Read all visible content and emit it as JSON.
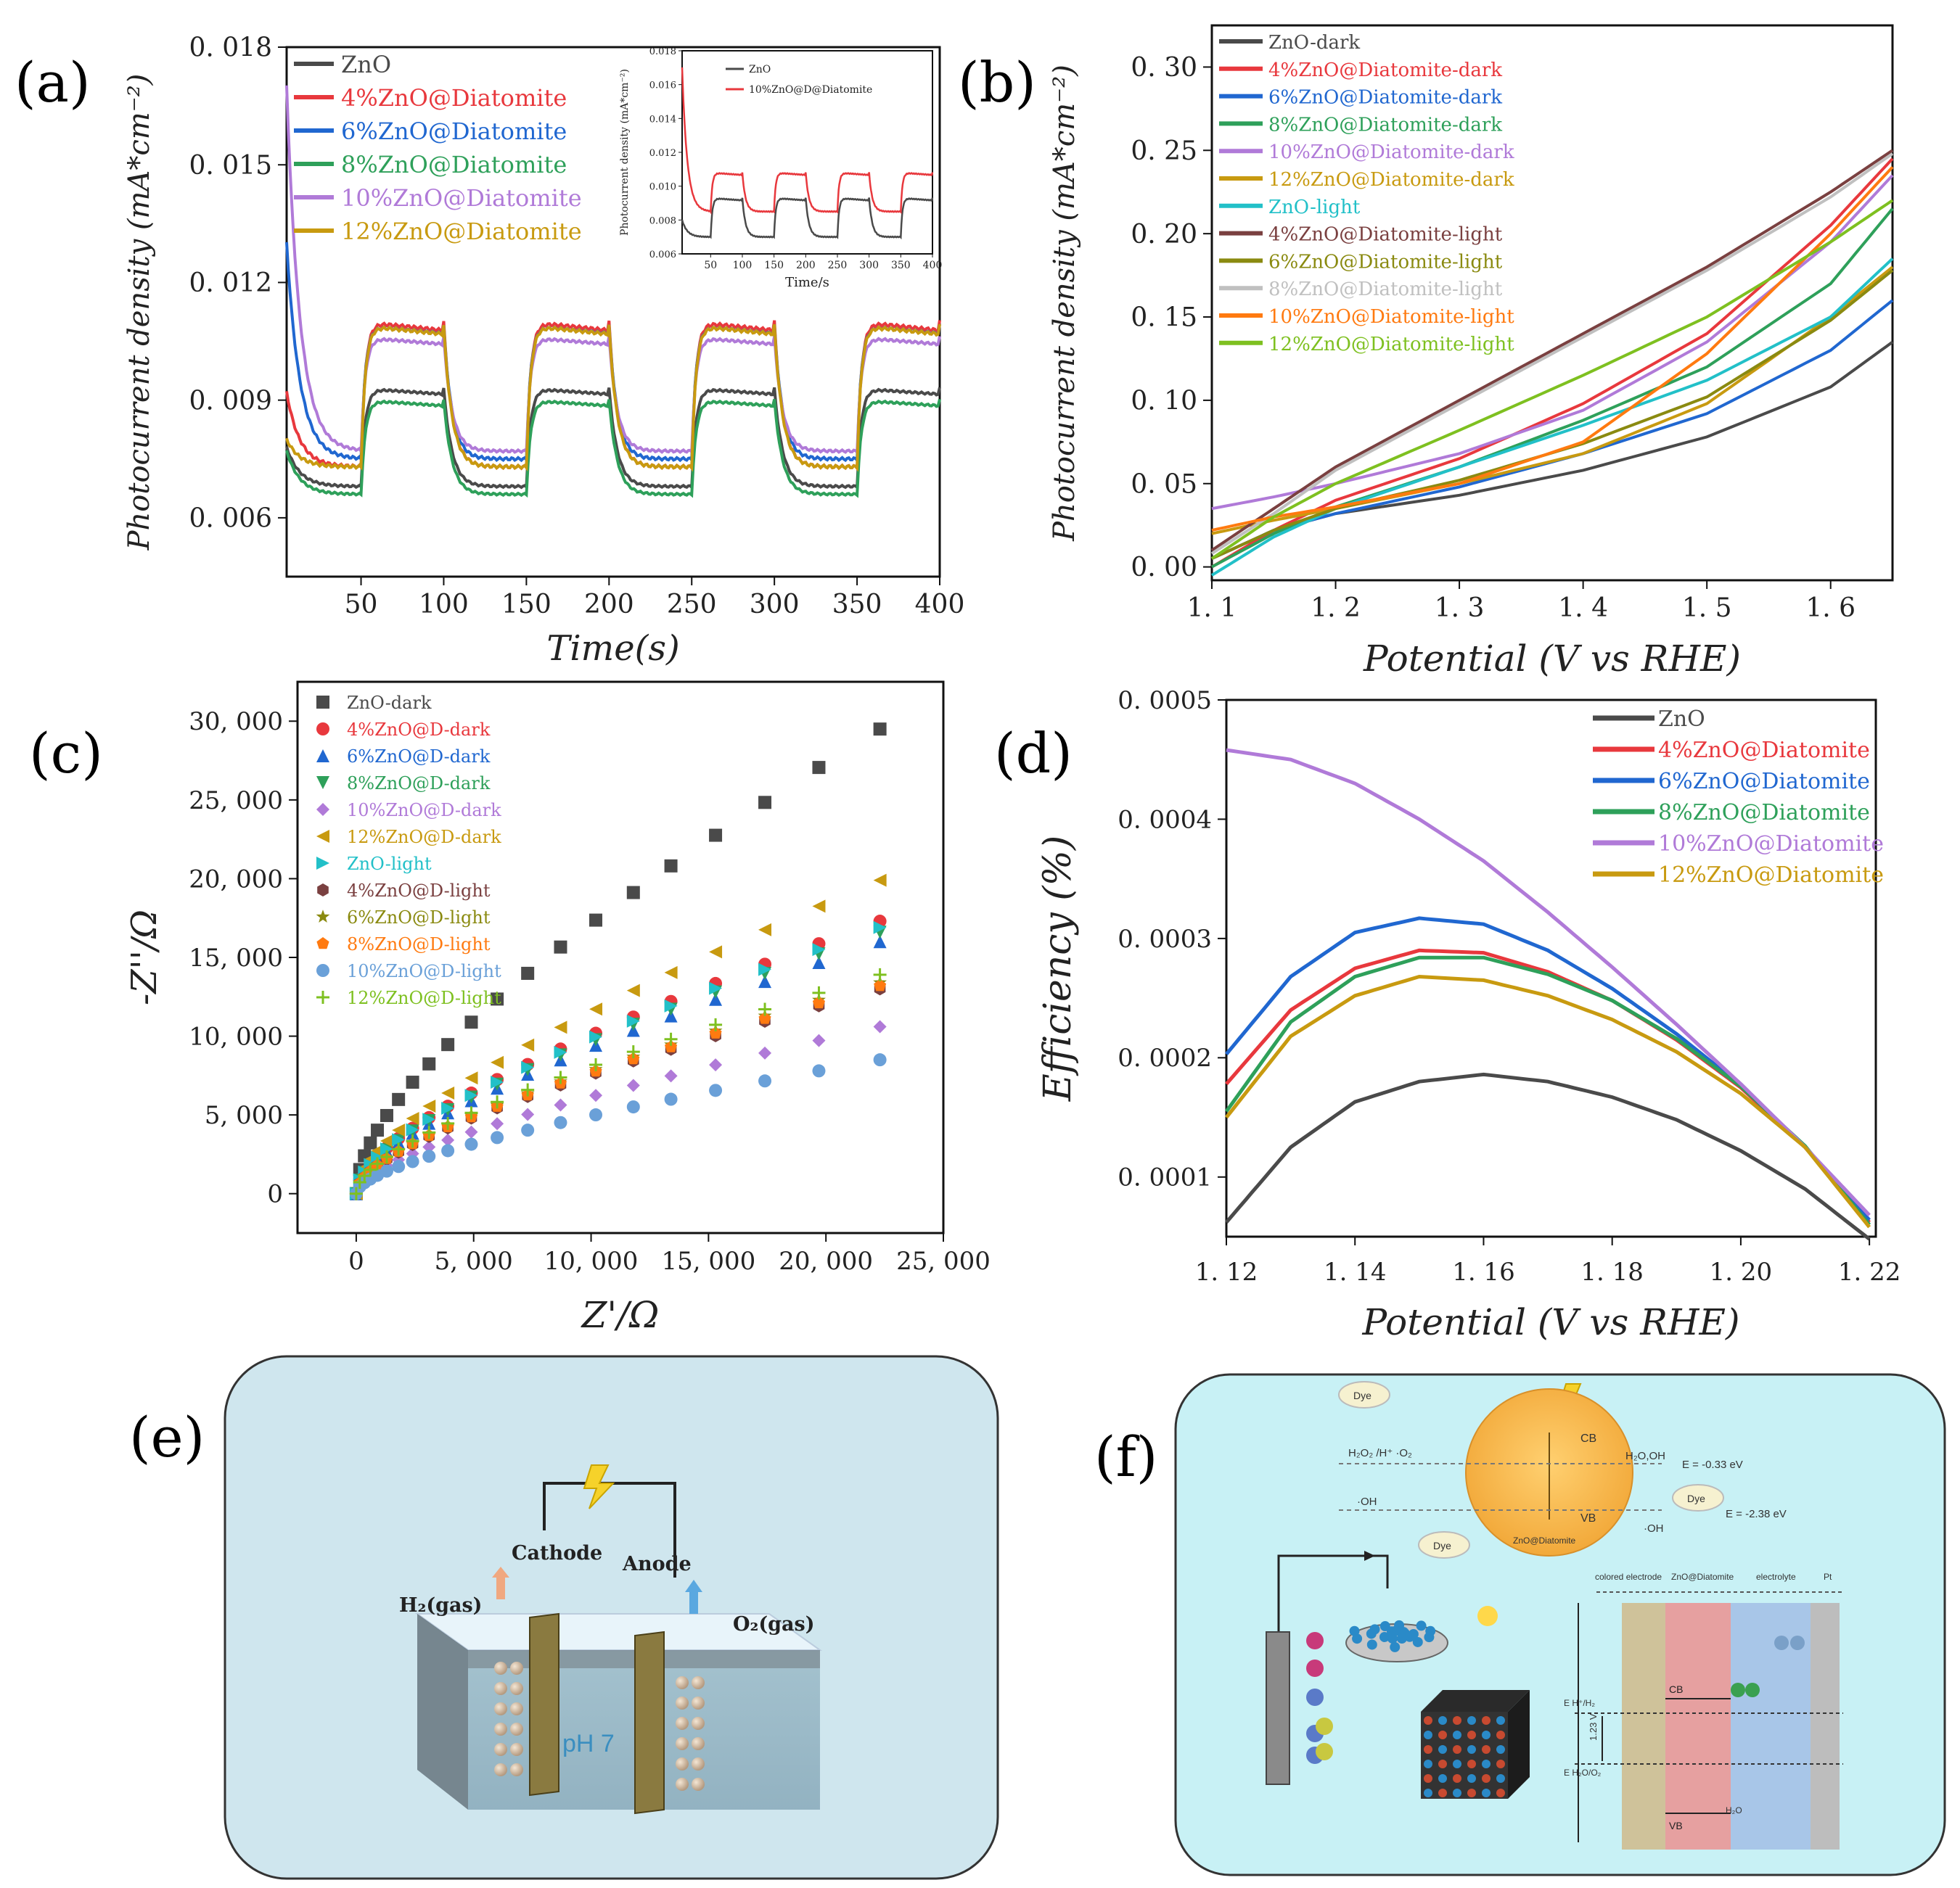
{
  "panel_labels": {
    "a": "(a)",
    "b": "(b)",
    "c": "(c)",
    "d": "(d)",
    "e": "(e)",
    "f": "(f)"
  },
  "chart_data": [
    {
      "id": "a",
      "type": "line",
      "xlabel": "Time(s)",
      "ylabel": "Photocurrent density (mA*cm⁻²)",
      "xlim": [
        5,
        400
      ],
      "ylim": [
        0.0045,
        0.018
      ],
      "xticks": [
        50,
        100,
        150,
        200,
        250,
        300,
        350,
        400
      ],
      "yticks": [
        0.006,
        0.009,
        0.012,
        0.015,
        0.018
      ],
      "ytick_labels": [
        "0. 006",
        "0. 009",
        "0. 012",
        "0. 015",
        "0. 018"
      ],
      "series": [
        {
          "name": "ZnO",
          "color": "#4a4a4a",
          "base": 0.0068,
          "high": 0.0093,
          "init": 0.0078
        },
        {
          "name": "4%ZnO@Diatomite",
          "color": "#e8383d",
          "base": 0.0073,
          "high": 0.011,
          "init": 0.0092
        },
        {
          "name": "6%ZnO@Diatomite",
          "color": "#2067d0",
          "base": 0.0075,
          "high": 0.0109,
          "init": 0.013
        },
        {
          "name": "8%ZnO@Diatomite",
          "color": "#2ea05a",
          "base": 0.0066,
          "high": 0.009,
          "init": 0.0077
        },
        {
          "name": "10%ZnO@Diatomite",
          "color": "#b07ad8",
          "base": 0.0077,
          "high": 0.0106,
          "init": 0.017
        },
        {
          "name": "12%ZnO@Diatomite",
          "color": "#c89a10",
          "base": 0.0073,
          "high": 0.0109,
          "init": 0.008
        }
      ],
      "inset": {
        "xlabel": "Time/s",
        "ylabel": "Photocurrent density (mA*cm⁻²)",
        "xticks": [
          50,
          100,
          150,
          200,
          250,
          300,
          350,
          400
        ],
        "yticks": [
          0.006,
          0.008,
          0.01,
          0.012,
          0.014,
          0.016,
          0.018
        ],
        "ytick_labels": [
          "0.006",
          "0.008",
          "0.010",
          "0.012",
          "0.014",
          "0.016",
          "0.018"
        ],
        "series": [
          {
            "name": "ZnO",
            "color": "#4a4a4a",
            "base": 0.007,
            "high": 0.0093,
            "init": 0.008
          },
          {
            "name": "10%ZnO@D@Diatomite",
            "color": "#e8383d",
            "base": 0.0085,
            "high": 0.0108,
            "init": 0.017
          }
        ]
      }
    },
    {
      "id": "b",
      "type": "line",
      "xlabel": "Potential (V vs RHE)",
      "ylabel": "Photocurrent density (mA*cm⁻²)",
      "xlim": [
        1.1,
        1.65
      ],
      "ylim": [
        -0.008,
        0.325
      ],
      "xticks": [
        1.1,
        1.2,
        1.3,
        1.4,
        1.5,
        1.6
      ],
      "xtick_labels": [
        "1. 1",
        "1. 2",
        "1. 3",
        "1. 4",
        "1. 5",
        "1. 6"
      ],
      "yticks": [
        0.0,
        0.05,
        0.1,
        0.15,
        0.2,
        0.25,
        0.3
      ],
      "ytick_labels": [
        "0. 00",
        "0. 05",
        "0. 10",
        "0. 15",
        "0. 20",
        "0. 25",
        "0. 30"
      ],
      "series": [
        {
          "name": "ZnO-dark",
          "color": "#4a4a4a",
          "x": [
            1.1,
            1.15,
            1.2,
            1.3,
            1.4,
            1.5,
            1.6,
            1.65
          ],
          "y": [
            0.005,
            0.022,
            0.032,
            0.043,
            0.058,
            0.078,
            0.108,
            0.135
          ]
        },
        {
          "name": "4%ZnO@Diatomite-dark",
          "color": "#e8383d",
          "x": [
            1.1,
            1.15,
            1.2,
            1.3,
            1.4,
            1.5,
            1.6,
            1.65
          ],
          "y": [
            0.0,
            0.022,
            0.04,
            0.065,
            0.098,
            0.14,
            0.205,
            0.245
          ]
        },
        {
          "name": "6%ZnO@Diatomite-dark",
          "color": "#2067d0",
          "x": [
            1.1,
            1.15,
            1.2,
            1.3,
            1.4,
            1.5,
            1.6,
            1.65
          ],
          "y": [
            0.005,
            0.022,
            0.032,
            0.048,
            0.068,
            0.092,
            0.13,
            0.16
          ]
        },
        {
          "name": "8%ZnO@Diatomite-dark",
          "color": "#2ea05a",
          "x": [
            1.1,
            1.15,
            1.2,
            1.3,
            1.4,
            1.5,
            1.6,
            1.65
          ],
          "y": [
            0.0,
            0.02,
            0.036,
            0.06,
            0.088,
            0.12,
            0.17,
            0.215
          ]
        },
        {
          "name": "10%ZnO@Diatomite-dark",
          "color": "#b07ad8",
          "x": [
            1.1,
            1.15,
            1.2,
            1.3,
            1.4,
            1.5,
            1.6,
            1.65
          ],
          "y": [
            0.035,
            0.042,
            0.05,
            0.068,
            0.094,
            0.135,
            0.195,
            0.235
          ]
        },
        {
          "name": "12%ZnO@Diatomite-dark",
          "color": "#c89a10",
          "x": [
            1.1,
            1.15,
            1.2,
            1.3,
            1.4,
            1.5,
            1.6,
            1.65
          ],
          "y": [
            0.02,
            0.028,
            0.035,
            0.05,
            0.068,
            0.098,
            0.15,
            0.18
          ]
        },
        {
          "name": "ZnO-light",
          "color": "#22c0c8",
          "x": [
            1.1,
            1.15,
            1.2,
            1.3,
            1.4,
            1.5,
            1.6,
            1.65
          ],
          "y": [
            -0.005,
            0.018,
            0.035,
            0.06,
            0.085,
            0.112,
            0.15,
            0.185
          ]
        },
        {
          "name": "4%ZnO@Diatomite-light",
          "color": "#7a4040",
          "x": [
            1.1,
            1.15,
            1.2,
            1.3,
            1.4,
            1.5,
            1.6,
            1.65
          ],
          "y": [
            0.01,
            0.035,
            0.06,
            0.1,
            0.14,
            0.18,
            0.225,
            0.25
          ]
        },
        {
          "name": "6%ZnO@Diatomite-light",
          "color": "#8a8a10",
          "x": [
            1.1,
            1.15,
            1.2,
            1.3,
            1.4,
            1.5,
            1.6,
            1.65
          ],
          "y": [
            0.005,
            0.022,
            0.035,
            0.052,
            0.074,
            0.102,
            0.148,
            0.178
          ]
        },
        {
          "name": "8%ZnO@Diatomite-light",
          "color": "#c0c0c0",
          "x": [
            1.1,
            1.15,
            1.2,
            1.3,
            1.4,
            1.5,
            1.6,
            1.65
          ],
          "y": [
            0.008,
            0.032,
            0.058,
            0.098,
            0.138,
            0.178,
            0.222,
            0.248
          ]
        },
        {
          "name": "10%ZnO@Diatomite-light",
          "color": "#ff7a10",
          "x": [
            1.1,
            1.15,
            1.2,
            1.3,
            1.4,
            1.5,
            1.6,
            1.65
          ],
          "y": [
            0.022,
            0.03,
            0.036,
            0.05,
            0.075,
            0.128,
            0.2,
            0.24
          ]
        },
        {
          "name": "12%ZnO@Diatomite-light",
          "color": "#7ec020",
          "x": [
            1.1,
            1.15,
            1.2,
            1.3,
            1.4,
            1.5,
            1.6,
            1.65
          ],
          "y": [
            0.005,
            0.03,
            0.05,
            0.082,
            0.115,
            0.15,
            0.195,
            0.22
          ]
        }
      ]
    },
    {
      "id": "c",
      "type": "scatter",
      "xlabel": "Z'/Ω",
      "ylabel": "-Z''/Ω",
      "xlim": [
        -2500,
        25000
      ],
      "ylim": [
        -2500,
        32500
      ],
      "xticks": [
        0,
        5000,
        10000,
        15000,
        20000,
        25000
      ],
      "xtick_labels": [
        "0",
        "5, 000",
        "10, 000",
        "15, 000",
        "20, 000",
        "25, 000"
      ],
      "yticks": [
        0,
        5000,
        10000,
        15000,
        20000,
        25000,
        30000
      ],
      "ytick_labels": [
        "0",
        "5, 000",
        "10, 000",
        "15, 000",
        "20, 000",
        "25, 000",
        "30, 000"
      ],
      "series": [
        {
          "name": "ZnO-dark",
          "color": "#4a4a4a",
          "marker": "square",
          "final": 29500
        },
        {
          "name": "4%ZnO@D-dark",
          "color": "#e8383d",
          "marker": "circle",
          "final": 17300
        },
        {
          "name": "6%ZnO@D-dark",
          "color": "#2067d0",
          "marker": "triangle-up",
          "final": 16000
        },
        {
          "name": "8%ZnO@D-dark",
          "color": "#2ea05a",
          "marker": "triangle-down",
          "final": 16600
        },
        {
          "name": "10%ZnO@D-dark",
          "color": "#b07ad8",
          "marker": "diamond",
          "final": 10600
        },
        {
          "name": "12%ZnO@D-dark",
          "color": "#c89a10",
          "marker": "triangle-left",
          "final": 19900
        },
        {
          "name": "ZnO-light",
          "color": "#22c0c8",
          "marker": "triangle-right",
          "final": 16900
        },
        {
          "name": "4%ZnO@D-light",
          "color": "#7a4040",
          "marker": "hexagon",
          "final": 13000
        },
        {
          "name": "6%ZnO@D-light",
          "color": "#8a8a10",
          "marker": "star",
          "final": 13400
        },
        {
          "name": "8%ZnO@D-light",
          "color": "#ff7a10",
          "marker": "pentagon",
          "final": 13200
        },
        {
          "name": "10%ZnO@D-light",
          "color": "#6aa0d8",
          "marker": "sphere",
          "final": 8500
        },
        {
          "name": "12%ZnO@D-light",
          "color": "#7ec020",
          "marker": "plus",
          "final": 13900
        }
      ]
    },
    {
      "id": "d",
      "type": "line",
      "xlabel": "Potential (V vs RHE)",
      "ylabel": "Efficiency (%)",
      "xlim": [
        1.12,
        1.221
      ],
      "ylim": [
        5e-05,
        0.0005
      ],
      "xticks": [
        1.12,
        1.14,
        1.16,
        1.18,
        1.2,
        1.22
      ],
      "xtick_labels": [
        "1. 12",
        "1. 14",
        "1. 16",
        "1. 18",
        "1. 20",
        "1. 22"
      ],
      "yticks": [
        0.0001,
        0.0002,
        0.0003,
        0.0004,
        0.0005
      ],
      "ytick_labels": [
        "0. 0001",
        "0. 0002",
        "0. 0003",
        "0. 0004",
        "0. 0005"
      ],
      "series": [
        {
          "name": "ZnO",
          "color": "#4a4a4a",
          "x": [
            1.12,
            1.13,
            1.14,
            1.15,
            1.16,
            1.17,
            1.18,
            1.19,
            1.2,
            1.21,
            1.22
          ],
          "y": [
            6.2e-05,
            0.000125,
            0.000163,
            0.00018,
            0.000186,
            0.00018,
            0.000167,
            0.000148,
            0.000122,
            9e-05,
            4.8e-05
          ]
        },
        {
          "name": "4%ZnO@Diatomite",
          "color": "#e8383d",
          "x": [
            1.12,
            1.13,
            1.14,
            1.15,
            1.16,
            1.17,
            1.18,
            1.19,
            1.2,
            1.21,
            1.22
          ],
          "y": [
            0.000178,
            0.00024,
            0.000275,
            0.00029,
            0.000288,
            0.000272,
            0.000248,
            0.000215,
            0.000175,
            0.000125,
            6.2e-05
          ]
        },
        {
          "name": "6%ZnO@Diatomite",
          "color": "#2067d0",
          "x": [
            1.12,
            1.13,
            1.14,
            1.15,
            1.16,
            1.17,
            1.18,
            1.19,
            1.2,
            1.21,
            1.22
          ],
          "y": [
            0.000203,
            0.000268,
            0.000305,
            0.000317,
            0.000312,
            0.00029,
            0.000258,
            0.00022,
            0.000177,
            0.000125,
            6.4e-05
          ]
        },
        {
          "name": "8%ZnO@Diatomite",
          "color": "#2ea05a",
          "x": [
            1.12,
            1.13,
            1.14,
            1.15,
            1.16,
            1.17,
            1.18,
            1.19,
            1.2,
            1.21,
            1.22
          ],
          "y": [
            0.000155,
            0.00023,
            0.000268,
            0.000284,
            0.000284,
            0.00027,
            0.000248,
            0.000216,
            0.000176,
            0.000126,
            6e-05
          ]
        },
        {
          "name": "10%ZnO@Diatomite",
          "color": "#b07ad8",
          "x": [
            1.12,
            1.13,
            1.14,
            1.15,
            1.16,
            1.17,
            1.18,
            1.19,
            1.2,
            1.21,
            1.22
          ],
          "y": [
            0.000458,
            0.00045,
            0.00043,
            0.0004,
            0.000365,
            0.000322,
            0.000276,
            0.000228,
            0.000178,
            0.000125,
            6.8e-05
          ]
        },
        {
          "name": "12%ZnO@Diatomite",
          "color": "#c89a10",
          "x": [
            1.12,
            1.13,
            1.14,
            1.15,
            1.16,
            1.17,
            1.18,
            1.19,
            1.2,
            1.21,
            1.22
          ],
          "y": [
            0.00015,
            0.000218,
            0.000252,
            0.000268,
            0.000265,
            0.000252,
            0.000232,
            0.000205,
            0.00017,
            0.000125,
            5.8e-05
          ]
        }
      ]
    }
  ],
  "diagram_e": {
    "cathode": "Cathode",
    "anode": "Anode",
    "h2": "H₂(gas)",
    "o2": "O₂(gas)",
    "ph": "pH 7"
  },
  "diagram_f": {
    "dye": "Dye",
    "cb": "CB",
    "vb": "VB",
    "h2o2": "H₂O₂ /H⁺ ·O₂",
    "oh": "·OH",
    "h2o_oh": "H₂O,OH",
    "oh_minus": "·OH",
    "e_cb": "E = -0.33 eV",
    "e_vb": "E = -2.38 eV",
    "sphere_label": "ZnO@Diatomite",
    "hdr_1": "colored electrode",
    "hdr_2": "ZnO@Diatomite",
    "hdr_3": "electrolyte",
    "hdr_4": "Pt",
    "v123": "1.23 V",
    "e1": "E H⁺/H₂",
    "e2": "E H₂O/O₂",
    "h2o_small": "H₂O"
  }
}
